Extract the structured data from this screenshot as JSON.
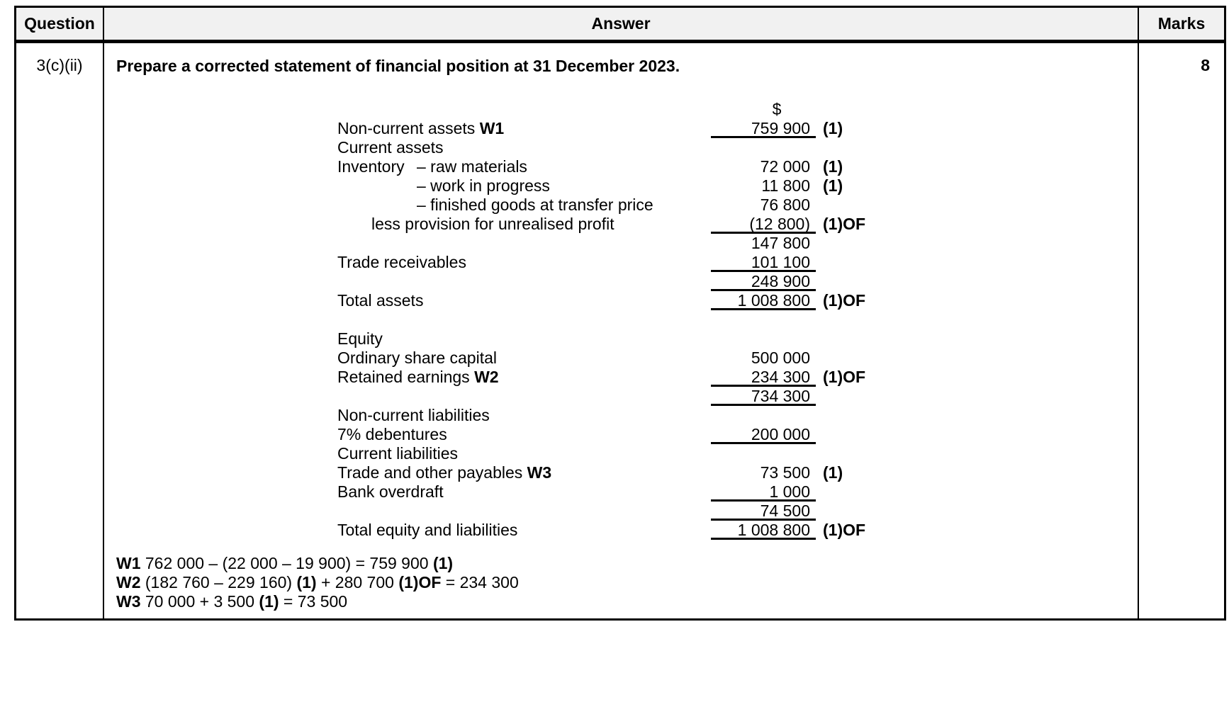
{
  "table": {
    "headers": {
      "question": "Question",
      "answer": "Answer",
      "marks": "Marks"
    },
    "question_no": "3(c)(ii)",
    "marks_value": "8"
  },
  "answer": {
    "title": "Prepare a corrected statement of financial position at 31 December 2023.",
    "currency_symbol": "$",
    "statement_lines": [
      {
        "type": "plain",
        "label": "Non-current assets",
        "label_bold": "W1",
        "amount": "759 900",
        "underline": true,
        "mark": "(1)"
      },
      {
        "type": "plain",
        "label": "Current assets",
        "amount": ""
      },
      {
        "type": "split",
        "label_left": "Inventory",
        "label": "– raw materials",
        "amount": "72 000",
        "mark": "(1)"
      },
      {
        "type": "dash",
        "label": "– work in progress",
        "amount": "11 800",
        "mark": "(1)"
      },
      {
        "type": "dash",
        "label": "– finished goods at transfer price",
        "amount": "76 800"
      },
      {
        "type": "less",
        "label": "less provision for unrealised profit",
        "amount": "(12 800)",
        "underline": true,
        "mark": "(1)OF"
      },
      {
        "type": "plain",
        "label": "",
        "amount": "147 800"
      },
      {
        "type": "plain",
        "label": "Trade receivables",
        "amount": "101 100",
        "underline": true
      },
      {
        "type": "plain",
        "label": "",
        "amount": "248 900",
        "underline": true
      },
      {
        "type": "plain",
        "label": "Total assets",
        "amount": "1 008 800",
        "underline": true,
        "mark": "(1)OF"
      },
      {
        "type": "spacer"
      },
      {
        "type": "plain",
        "label": "Equity",
        "amount": ""
      },
      {
        "type": "plain",
        "label": "Ordinary share capital",
        "amount": "500 000"
      },
      {
        "type": "plain",
        "label": "Retained earnings",
        "label_bold": "W2",
        "amount": "234 300",
        "underline": true,
        "mark": "(1)OF"
      },
      {
        "type": "plain",
        "label": "",
        "amount": "734 300",
        "underline": true
      },
      {
        "type": "plain",
        "label": "Non-current liabilities",
        "amount": ""
      },
      {
        "type": "plain",
        "label": "7% debentures",
        "amount": "200 000",
        "underline": true
      },
      {
        "type": "plain",
        "label": "Current liabilities",
        "amount": ""
      },
      {
        "type": "plain",
        "label": "Trade and other payables",
        "label_bold": "W3",
        "amount": "73 500",
        "mark": "(1)"
      },
      {
        "type": "plain",
        "label": "Bank overdraft",
        "amount": "1 000",
        "underline": true
      },
      {
        "type": "plain",
        "label": "",
        "amount": "74 500",
        "underline": true
      },
      {
        "type": "plain",
        "label": "Total equity and liabilities",
        "amount": "1 008 800",
        "underline": true,
        "mark": "(1)OF"
      }
    ],
    "workings": [
      {
        "segments": [
          {
            "text": "W1",
            "bold": true
          },
          {
            "text": " 762 000 – (22 000 – 19 900) = 759 900 ",
            "bold": false
          },
          {
            "text": "(1)",
            "bold": true
          }
        ]
      },
      {
        "segments": [
          {
            "text": "W2",
            "bold": true
          },
          {
            "text": " (182 760 – 229 160) ",
            "bold": false
          },
          {
            "text": "(1)",
            "bold": true
          },
          {
            "text": " + 280 700 ",
            "bold": false
          },
          {
            "text": "(1)OF",
            "bold": true
          },
          {
            "text": " = 234 300",
            "bold": false
          }
        ]
      },
      {
        "segments": [
          {
            "text": "W3",
            "bold": true
          },
          {
            "text": " 70 000 + 3 500 ",
            "bold": false
          },
          {
            "text": "(1)",
            "bold": true
          },
          {
            "text": " = 73 500",
            "bold": false
          }
        ]
      }
    ]
  }
}
